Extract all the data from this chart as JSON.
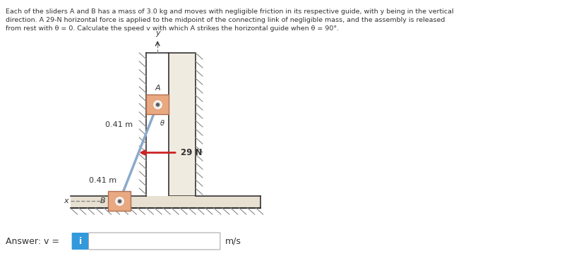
{
  "problem_text_line1": "Each of the sliders A and B has a mass of 3.0 kg and moves with negligible friction in its respective guide, with y being in the vertical",
  "problem_text_line2": "direction. A 29-N horizontal force is applied to the midpoint of the connecting link of negligible mass, and the assembly is released",
  "problem_text_line3": "from rest with θ = 0. Calculate the speed v with which A strikes the horizontal guide when θ = 90°.",
  "answer_label": "Answer: v =",
  "answer_unit": "m/s",
  "label_041_upper": "0.41 m",
  "label_041_lower": "0.41 m",
  "label_29N": "29 N",
  "label_A": "A",
  "label_B": "B",
  "label_x": "x",
  "label_y": "y",
  "label_theta": "θ",
  "bg_color": "#ffffff",
  "slider_color": "#e8a882",
  "slider_border": "#b07050",
  "wall_fill": "#f0ebe0",
  "wall_border": "#333333",
  "link_color": "#8aaacc",
  "arrow_color": "#cc2222",
  "hatch_color": "#888888",
  "text_color": "#333333",
  "input_bg": "#3399dd",
  "input_box_bg": "#ffffff",
  "input_border": "#aaaaaa",
  "dashed_color": "#888888",
  "floor_fill": "#e8e0d0",
  "pin_outer": "#ffffff",
  "pin_inner": "#555555"
}
